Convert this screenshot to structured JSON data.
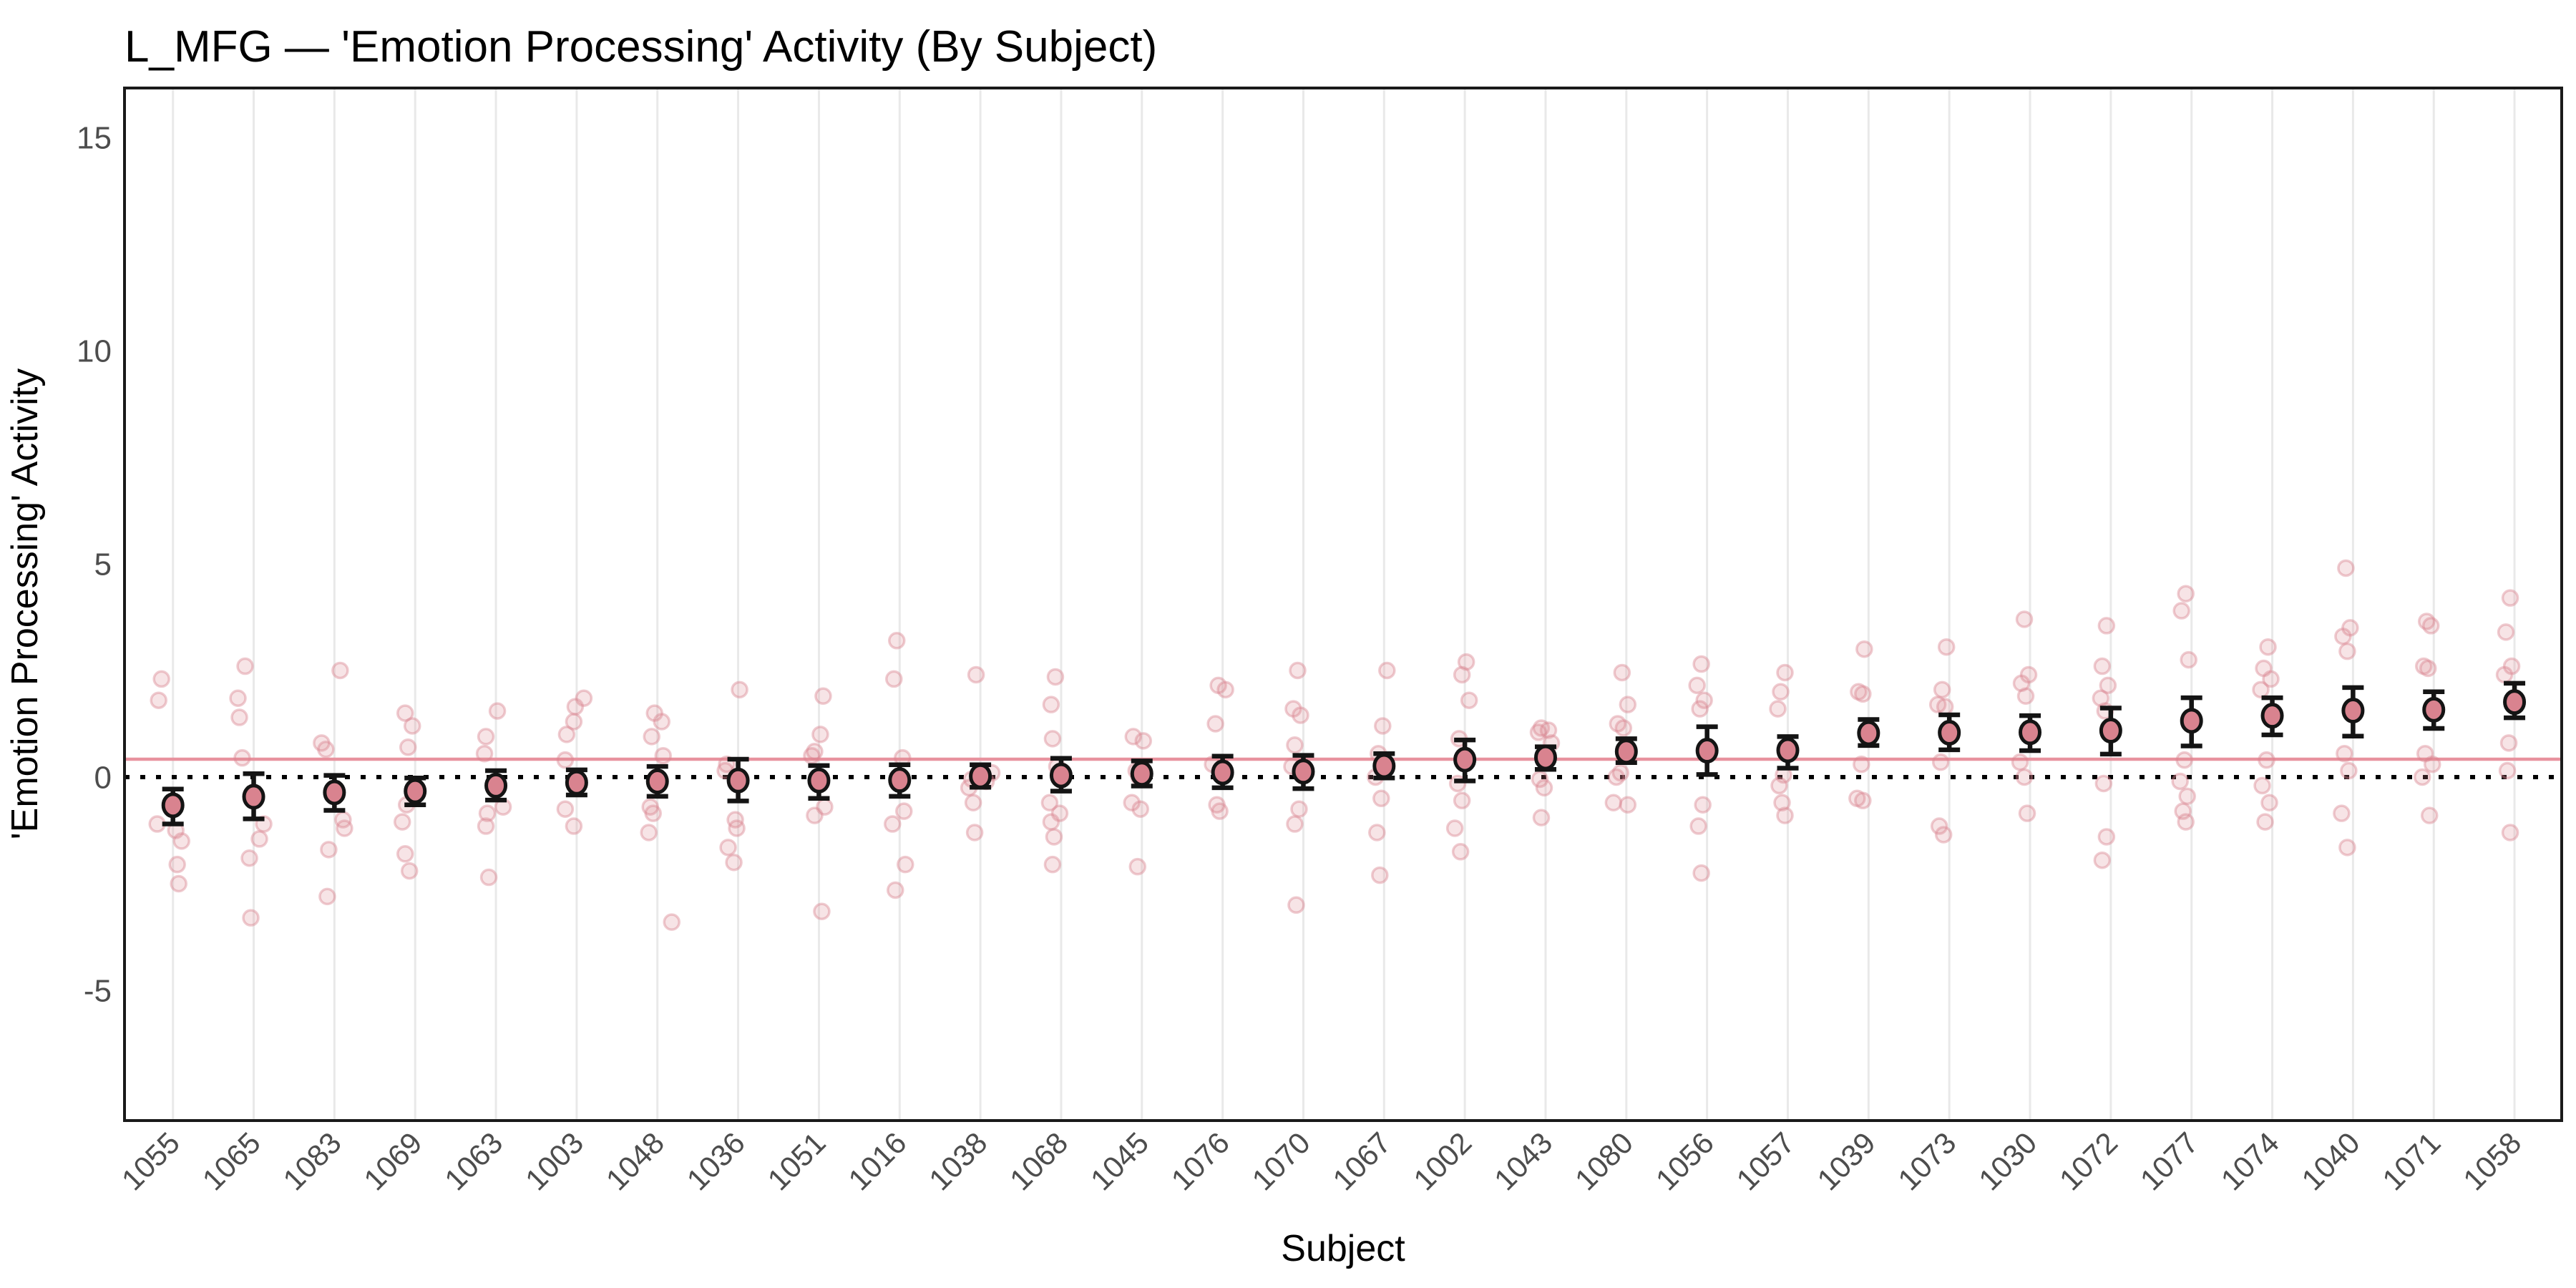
{
  "colors": {
    "point_fill": "#D9838F",
    "point_stroke": "#141414",
    "scatter_pink": "#D9838F",
    "grand_mean_line": "#E8929E",
    "zero_line": "#000000",
    "gridline": "#E9E9E9",
    "panel_border": "#1A1A1A",
    "tick_text": "#4D4D4D",
    "title_text": "#000000"
  },
  "chart_data": {
    "type": "scatter",
    "subtype": "pointrange-by-subject-with-jittered-raw-points",
    "title": "L_MFG — 'Emotion Processing' Activity (By Subject)",
    "xlabel": "Subject",
    "ylabel": "'Emotion Processing' Activity",
    "ylim": [
      -8.1,
      16.2
    ],
    "yticks": [
      15,
      10,
      5,
      0,
      -5
    ],
    "grid": "vertical-major-only",
    "legend_position": "none",
    "zero_line": 0,
    "grand_mean_line": 0.42,
    "subjects": [
      {
        "id": "1055",
        "mean": -0.66,
        "ci": [
          -1.1,
          -0.28
        ],
        "points": [
          [
            2.3,
            -16
          ],
          [
            1.8,
            -20
          ],
          [
            -1.1,
            -22
          ],
          [
            -1.25,
            4
          ],
          [
            -1.5,
            12
          ],
          [
            -2.05,
            6
          ],
          [
            -2.5,
            8
          ]
        ]
      },
      {
        "id": "1065",
        "mean": -0.46,
        "ci": [
          -0.98,
          0.08
        ],
        "points": [
          [
            2.6,
            -12
          ],
          [
            1.85,
            -22
          ],
          [
            1.4,
            -20
          ],
          [
            0.45,
            -16
          ],
          [
            -1.1,
            14
          ],
          [
            -1.45,
            8
          ],
          [
            -1.9,
            -6
          ],
          [
            -3.3,
            -4
          ]
        ]
      },
      {
        "id": "1083",
        "mean": -0.36,
        "ci": [
          -0.78,
          0.04
        ],
        "points": [
          [
            2.5,
            8
          ],
          [
            0.8,
            -18
          ],
          [
            0.65,
            -12
          ],
          [
            -1.0,
            12
          ],
          [
            -1.2,
            14
          ],
          [
            -1.7,
            -8
          ],
          [
            -2.8,
            -10
          ]
        ]
      },
      {
        "id": "1069",
        "mean": -0.33,
        "ci": [
          -0.65,
          -0.02
        ],
        "points": [
          [
            1.5,
            -14
          ],
          [
            1.2,
            -4
          ],
          [
            0.7,
            -10
          ],
          [
            -0.65,
            -12
          ],
          [
            -1.05,
            -18
          ],
          [
            -1.8,
            -14
          ],
          [
            -2.2,
            -8
          ]
        ]
      },
      {
        "id": "1063",
        "mean": -0.2,
        "ci": [
          -0.54,
          0.15
        ],
        "points": [
          [
            1.55,
            2
          ],
          [
            0.95,
            -14
          ],
          [
            0.55,
            -16
          ],
          [
            -0.7,
            10
          ],
          [
            -0.85,
            -12
          ],
          [
            -1.15,
            -14
          ],
          [
            -2.35,
            -10
          ]
        ]
      },
      {
        "id": "1003",
        "mean": -0.13,
        "ci": [
          -0.42,
          0.17
        ],
        "points": [
          [
            1.85,
            10
          ],
          [
            1.65,
            -2
          ],
          [
            1.3,
            -4
          ],
          [
            1.0,
            -14
          ],
          [
            0.4,
            -16
          ],
          [
            -0.15,
            -2
          ],
          [
            -0.75,
            -16
          ],
          [
            -1.15,
            -4
          ]
        ]
      },
      {
        "id": "1048",
        "mean": -0.1,
        "ci": [
          -0.45,
          0.25
        ],
        "points": [
          [
            1.5,
            -4
          ],
          [
            1.3,
            6
          ],
          [
            0.95,
            -8
          ],
          [
            0.5,
            8
          ],
          [
            -0.7,
            -10
          ],
          [
            -0.85,
            -6
          ],
          [
            -1.3,
            -12
          ],
          [
            -3.4,
            20
          ]
        ]
      },
      {
        "id": "1036",
        "mean": -0.08,
        "ci": [
          -0.56,
          0.42
        ],
        "points": [
          [
            2.05,
            2
          ],
          [
            0.3,
            -16
          ],
          [
            0.15,
            -18
          ],
          [
            -1.0,
            -4
          ],
          [
            -1.2,
            -2
          ],
          [
            -1.65,
            -14
          ],
          [
            -2.0,
            -6
          ]
        ]
      },
      {
        "id": "1051",
        "mean": -0.08,
        "ci": [
          -0.5,
          0.27
        ],
        "points": [
          [
            1.9,
            6
          ],
          [
            1.0,
            2
          ],
          [
            0.6,
            -6
          ],
          [
            0.5,
            -10
          ],
          [
            -0.7,
            8
          ],
          [
            -0.9,
            -6
          ],
          [
            -3.15,
            4
          ]
        ]
      },
      {
        "id": "1016",
        "mean": -0.07,
        "ci": [
          -0.45,
          0.29
        ],
        "points": [
          [
            3.2,
            -4
          ],
          [
            2.3,
            -8
          ],
          [
            0.45,
            4
          ],
          [
            -0.8,
            6
          ],
          [
            -1.1,
            -10
          ],
          [
            -2.05,
            8
          ],
          [
            -2.65,
            -6
          ]
        ]
      },
      {
        "id": "1038",
        "mean": 0.02,
        "ci": [
          -0.24,
          0.29
        ],
        "points": [
          [
            2.4,
            -6
          ],
          [
            0.1,
            16
          ],
          [
            -0.05,
            -12
          ],
          [
            -0.1,
            8
          ],
          [
            -0.25,
            -16
          ],
          [
            -0.6,
            -10
          ],
          [
            -1.3,
            -8
          ]
        ]
      },
      {
        "id": "1068",
        "mean": 0.04,
        "ci": [
          -0.33,
          0.44
        ],
        "points": [
          [
            2.35,
            -8
          ],
          [
            1.7,
            -14
          ],
          [
            0.9,
            -12
          ],
          [
            0.25,
            -6
          ],
          [
            -0.6,
            -16
          ],
          [
            -0.85,
            -2
          ],
          [
            -1.05,
            -14
          ],
          [
            -1.4,
            -10
          ],
          [
            -2.05,
            -12
          ]
        ]
      },
      {
        "id": "1045",
        "mean": 0.08,
        "ci": [
          -0.21,
          0.38
        ],
        "points": [
          [
            0.95,
            -12
          ],
          [
            0.85,
            2
          ],
          [
            0.15,
            -8
          ],
          [
            0.0,
            -4
          ],
          [
            -0.6,
            -14
          ],
          [
            -0.75,
            -2
          ],
          [
            -2.1,
            -6
          ]
        ]
      },
      {
        "id": "1076",
        "mean": 0.11,
        "ci": [
          -0.25,
          0.49
        ],
        "points": [
          [
            2.15,
            -6
          ],
          [
            2.05,
            4
          ],
          [
            1.25,
            -10
          ],
          [
            0.3,
            -14
          ],
          [
            0.1,
            -2
          ],
          [
            -0.65,
            -8
          ],
          [
            -0.8,
            -4
          ]
        ]
      },
      {
        "id": "1070",
        "mean": 0.13,
        "ci": [
          -0.27,
          0.51
        ],
        "points": [
          [
            2.5,
            -8
          ],
          [
            1.6,
            -14
          ],
          [
            1.45,
            -4
          ],
          [
            0.75,
            -12
          ],
          [
            0.25,
            -16
          ],
          [
            -0.75,
            -6
          ],
          [
            -1.1,
            -12
          ],
          [
            -3.0,
            -10
          ]
        ]
      },
      {
        "id": "1067",
        "mean": 0.26,
        "ci": [
          -0.02,
          0.55
        ],
        "points": [
          [
            2.5,
            4
          ],
          [
            1.2,
            -2
          ],
          [
            0.55,
            -8
          ],
          [
            0.0,
            -12
          ],
          [
            -0.5,
            -4
          ],
          [
            -1.3,
            -10
          ],
          [
            -2.3,
            -6
          ]
        ]
      },
      {
        "id": "1002",
        "mean": 0.41,
        "ci": [
          -0.09,
          0.87
        ],
        "points": [
          [
            2.7,
            2
          ],
          [
            2.4,
            -4
          ],
          [
            1.8,
            6
          ],
          [
            0.9,
            -8
          ],
          [
            -0.15,
            -10
          ],
          [
            -0.55,
            -4
          ],
          [
            -1.2,
            -14
          ],
          [
            -1.75,
            -6
          ]
        ]
      },
      {
        "id": "1043",
        "mean": 0.46,
        "ci": [
          0.18,
          0.71
        ],
        "points": [
          [
            1.15,
            -6
          ],
          [
            1.1,
            4
          ],
          [
            1.05,
            -10
          ],
          [
            0.8,
            8
          ],
          [
            -0.05,
            -8
          ],
          [
            -0.25,
            -2
          ],
          [
            -0.95,
            -6
          ]
        ]
      },
      {
        "id": "1080",
        "mean": 0.6,
        "ci": [
          0.34,
          0.9
        ],
        "points": [
          [
            2.45,
            -6
          ],
          [
            1.7,
            2
          ],
          [
            1.25,
            -12
          ],
          [
            1.15,
            -4
          ],
          [
            0.1,
            -8
          ],
          [
            0.0,
            -14
          ],
          [
            -0.6,
            -18
          ],
          [
            -0.65,
            2
          ]
        ]
      },
      {
        "id": "1056",
        "mean": 0.62,
        "ci": [
          0.06,
          1.18
        ],
        "points": [
          [
            2.65,
            -8
          ],
          [
            2.15,
            -14
          ],
          [
            1.8,
            -4
          ],
          [
            1.6,
            -10
          ],
          [
            -0.65,
            -6
          ],
          [
            -1.15,
            -12
          ],
          [
            -2.25,
            -8
          ]
        ]
      },
      {
        "id": "1057",
        "mean": 0.63,
        "ci": [
          0.21,
          0.95
        ],
        "points": [
          [
            2.45,
            -4
          ],
          [
            2.0,
            -10
          ],
          [
            1.6,
            -14
          ],
          [
            0.05,
            -6
          ],
          [
            -0.2,
            -12
          ],
          [
            -0.6,
            -8
          ],
          [
            -0.9,
            -4
          ]
        ]
      },
      {
        "id": "1039",
        "mean": 1.03,
        "ci": [
          0.74,
          1.35
        ],
        "points": [
          [
            3.0,
            -6
          ],
          [
            2.0,
            -14
          ],
          [
            1.95,
            -8
          ],
          [
            1.1,
            -2
          ],
          [
            0.3,
            -10
          ],
          [
            -0.5,
            -16
          ],
          [
            -0.55,
            -8
          ]
        ]
      },
      {
        "id": "1073",
        "mean": 1.04,
        "ci": [
          0.64,
          1.46
        ],
        "points": [
          [
            3.05,
            -4
          ],
          [
            2.05,
            -10
          ],
          [
            1.7,
            -16
          ],
          [
            1.65,
            -6
          ],
          [
            0.35,
            -12
          ],
          [
            -1.15,
            -14
          ],
          [
            -1.35,
            -8
          ]
        ]
      },
      {
        "id": "1030",
        "mean": 1.05,
        "ci": [
          0.62,
          1.44
        ],
        "points": [
          [
            3.7,
            -8
          ],
          [
            2.4,
            -2
          ],
          [
            2.2,
            -12
          ],
          [
            1.9,
            -6
          ],
          [
            0.35,
            -14
          ],
          [
            0.0,
            -8
          ],
          [
            -0.85,
            -4
          ]
        ]
      },
      {
        "id": "1072",
        "mean": 1.09,
        "ci": [
          0.54,
          1.62
        ],
        "points": [
          [
            3.55,
            -6
          ],
          [
            2.6,
            -12
          ],
          [
            2.15,
            -4
          ],
          [
            1.85,
            -14
          ],
          [
            1.55,
            -8
          ],
          [
            -0.15,
            -10
          ],
          [
            -1.4,
            -6
          ],
          [
            -1.95,
            -12
          ]
        ]
      },
      {
        "id": "1077",
        "mean": 1.32,
        "ci": [
          0.73,
          1.86
        ],
        "points": [
          [
            4.3,
            -8
          ],
          [
            3.9,
            -14
          ],
          [
            2.75,
            -4
          ],
          [
            0.4,
            -10
          ],
          [
            -0.1,
            -16
          ],
          [
            -0.45,
            -6
          ],
          [
            -0.8,
            -12
          ],
          [
            -1.05,
            -8
          ]
        ]
      },
      {
        "id": "1074",
        "mean": 1.44,
        "ci": [
          0.99,
          1.86
        ],
        "points": [
          [
            3.05,
            -6
          ],
          [
            2.55,
            -12
          ],
          [
            2.3,
            -2
          ],
          [
            2.05,
            -16
          ],
          [
            0.4,
            -8
          ],
          [
            -0.2,
            -14
          ],
          [
            -0.6,
            -4
          ],
          [
            -1.05,
            -10
          ]
        ]
      },
      {
        "id": "1040",
        "mean": 1.56,
        "ci": [
          0.96,
          2.1
        ],
        "points": [
          [
            4.9,
            -10
          ],
          [
            3.5,
            -4
          ],
          [
            3.3,
            -14
          ],
          [
            2.95,
            -8
          ],
          [
            0.55,
            -12
          ],
          [
            0.15,
            -6
          ],
          [
            -0.85,
            -16
          ],
          [
            -1.65,
            -8
          ]
        ]
      },
      {
        "id": "1071",
        "mean": 1.58,
        "ci": [
          1.14,
          2.0
        ],
        "points": [
          [
            3.65,
            -10
          ],
          [
            3.55,
            -4
          ],
          [
            2.6,
            -14
          ],
          [
            2.55,
            -8
          ],
          [
            0.55,
            -12
          ],
          [
            0.3,
            -2
          ],
          [
            0.0,
            -16
          ],
          [
            -0.9,
            -6
          ]
        ]
      },
      {
        "id": "1058",
        "mean": 1.76,
        "ci": [
          1.39,
          2.2
        ],
        "points": [
          [
            4.2,
            -6
          ],
          [
            3.4,
            -12
          ],
          [
            2.6,
            -4
          ],
          [
            2.4,
            -14
          ],
          [
            0.8,
            -8
          ],
          [
            0.15,
            -10
          ],
          [
            -1.3,
            -6
          ]
        ]
      }
    ]
  }
}
